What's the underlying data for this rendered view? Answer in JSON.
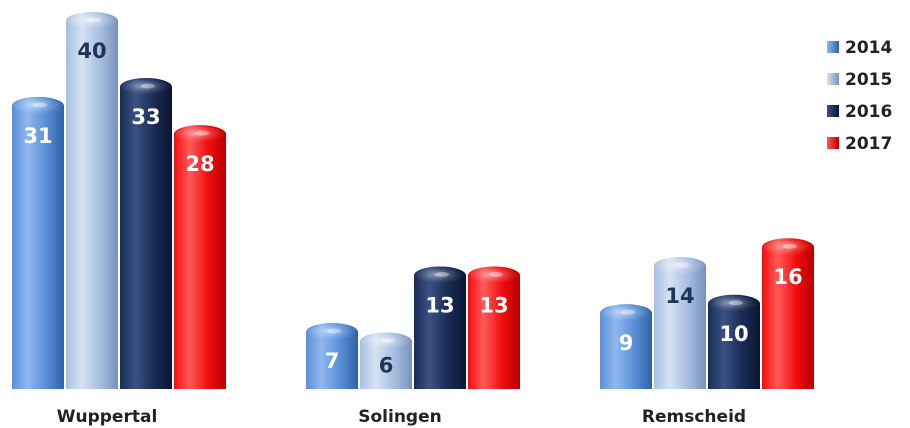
{
  "chart_data": {
    "type": "bar",
    "categories": [
      "Wuppertal",
      "Solingen",
      "Remscheid"
    ],
    "series": [
      {
        "name": "2014",
        "values": [
          31,
          7,
          9
        ]
      },
      {
        "name": "2015",
        "values": [
          40,
          6,
          14
        ]
      },
      {
        "name": "2016",
        "values": [
          33,
          13,
          10
        ]
      },
      {
        "name": "2017",
        "values": [
          28,
          13,
          16
        ]
      }
    ],
    "data_labels": true,
    "legend_position": "top-right",
    "grid": false,
    "ylim": [
      0,
      40
    ]
  },
  "colors": {
    "2014": {
      "dark": "#2f62a7",
      "mid": "#5a90d8",
      "light": "#8fb8ee",
      "text": "#ffffff"
    },
    "2015": {
      "dark": "#7792bd",
      "mid": "#a8bfe0",
      "light": "#d5e2f3",
      "text": "#1e3458"
    },
    "2016": {
      "dark": "#0a1530",
      "mid": "#1a2c55",
      "light": "#3a5283",
      "text": "#ffffff"
    },
    "2017": {
      "dark": "#b50000",
      "mid": "#f20e0e",
      "light": "#ff5a5a",
      "text": "#ffffff"
    }
  }
}
